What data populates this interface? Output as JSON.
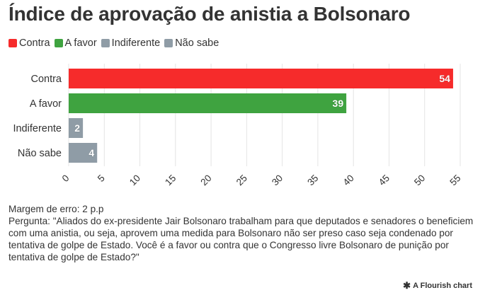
{
  "title": "Índice de aprovação de anistia a Bolsonaro",
  "legend": [
    {
      "label": "Contra",
      "color": "#f62b2b"
    },
    {
      "label": "A favor",
      "color": "#3fa340"
    },
    {
      "label": "Indiferente",
      "color": "#8f9ca6"
    },
    {
      "label": "Não sabe",
      "color": "#8f9ca6"
    }
  ],
  "chart_data": {
    "type": "bar",
    "orientation": "horizontal",
    "categories": [
      "Contra",
      "A favor",
      "Indiferente",
      "Não sabe"
    ],
    "values": [
      54,
      39,
      2,
      4
    ],
    "colors": [
      "#f62b2b",
      "#3fa340",
      "#8f9ca6",
      "#8f9ca6"
    ],
    "xlim": [
      0,
      55
    ],
    "ticks": [
      0,
      5,
      10,
      15,
      20,
      25,
      30,
      35,
      40,
      45,
      50,
      55
    ],
    "grid": true,
    "legend_position": "top-left"
  },
  "footnote": {
    "margin": "Margem de erro: 2 p.p",
    "question": "Pergunta: \"Aliados do ex-presidente Jair Bolsonaro trabalham para que deputados e senadores o beneficiem com uma anistia, ou seja, aprovem uma medida para Bolsonaro não ser preso caso seja condenado por tentativa de golpe de Estado. Você é a favor ou contra que o Congresso livre Bolsonaro de punição por tentativa de golpe de Estado?\""
  },
  "credit": {
    "icon": "flourish-star-icon",
    "label": "A Flourish chart"
  }
}
